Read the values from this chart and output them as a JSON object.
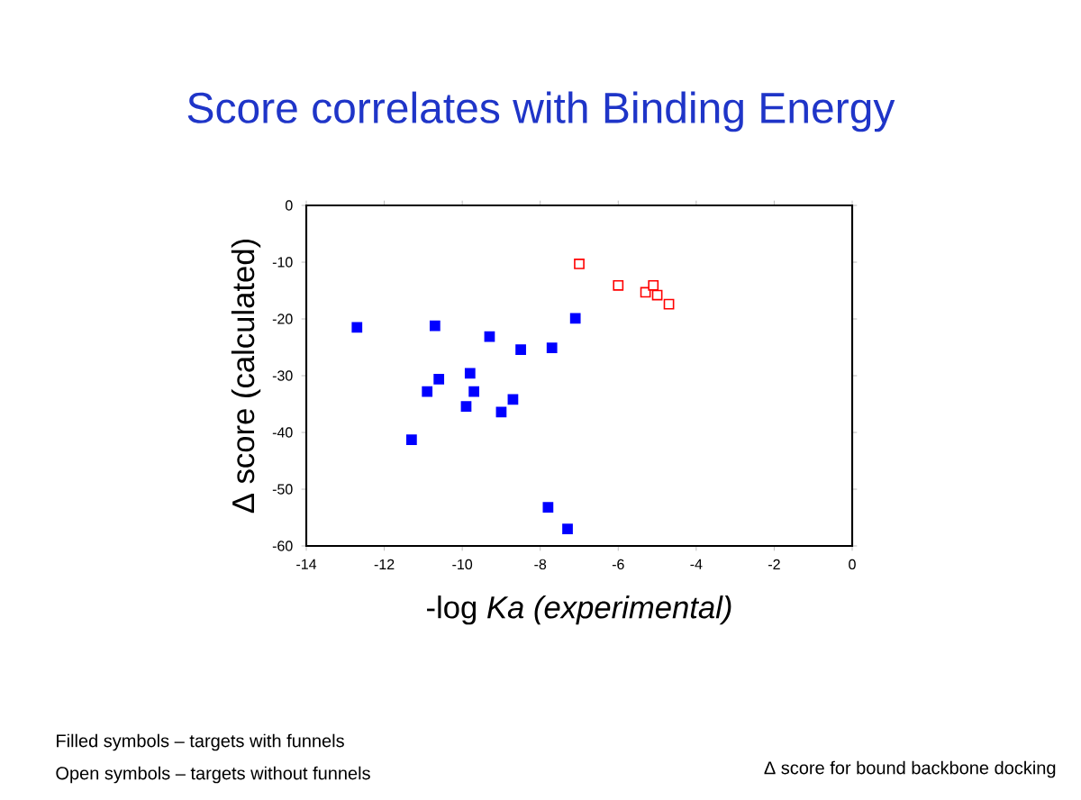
{
  "chart_data": {
    "type": "scatter",
    "title": "Score correlates with Binding Energy",
    "xlabel": "-log *Ka  (experimental)*",
    "ylabel": "Δ score (calculated)",
    "xlim": [
      -14,
      0
    ],
    "ylim": [
      -60,
      0
    ],
    "xticks": [
      -14,
      -12,
      -10,
      -8,
      -6,
      -4,
      -2,
      0
    ],
    "yticks": [
      -60,
      -50,
      -40,
      -30,
      -20,
      -10,
      0
    ],
    "grid": false,
    "marker": "square",
    "series": [
      {
        "color": "#0000ff",
        "x": [
          -12.7,
          -10.7,
          -9.3,
          -8.5,
          -7.7,
          -7.1,
          -9.8,
          -10.6,
          -10.9,
          -9.7,
          -9.9,
          -9.0,
          -8.7,
          -11.3,
          -7.8,
          -7.3
        ],
        "values": [
          -21.5,
          -21.2,
          -23.1,
          -25.4,
          -25.1,
          -19.9,
          -29.6,
          -30.6,
          -32.8,
          -32.8,
          -35.4,
          -36.4,
          -34.2,
          -41.3,
          -53.2,
          -57.0
        ]
      },
      {
        "color": "#ff0000",
        "x": [
          -7.0,
          -6.0,
          -5.3,
          -5.1,
          -5.0,
          -4.7
        ],
        "values": [
          -10.3,
          -14.1,
          -15.3,
          -14.1,
          -15.8,
          -17.4
        ]
      }
    ],
    "annotations": [
      "Filled symbols – targets with funnels",
      "Open symbols – targets without funnels",
      "Δ score for bound backbone docking"
    ]
  }
}
